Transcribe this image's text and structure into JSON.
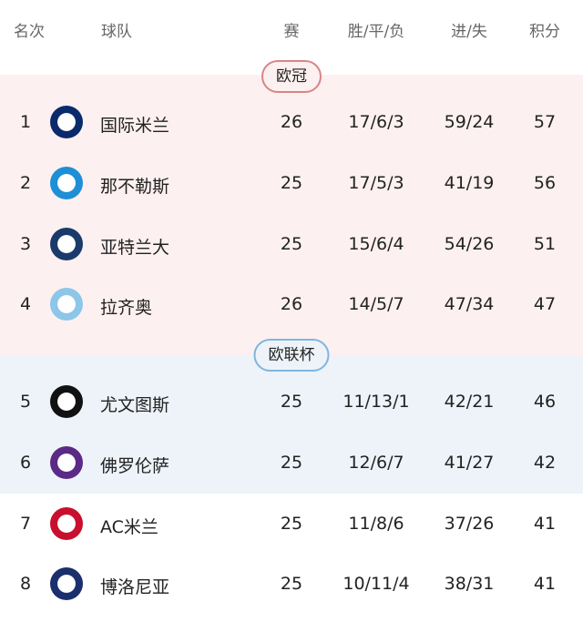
{
  "header": {
    "rank": "名次",
    "team": "球队",
    "played": "赛",
    "wdl": "胜/平/负",
    "goals": "进/失",
    "points": "积分"
  },
  "zones": [
    {
      "label": "欧冠",
      "background": "#fdf0f0",
      "border": "#d98585"
    },
    {
      "label": "欧联杯",
      "background": "#edf3f9",
      "border": "#7fb6de"
    }
  ],
  "rows": [
    {
      "rank": "1",
      "team": "国际米兰",
      "played": "26",
      "wdl": "17/6/3",
      "goals": "59/24",
      "points": "57",
      "logo": "inter-logo",
      "color": "#0a2a6b"
    },
    {
      "rank": "2",
      "team": "那不勒斯",
      "played": "25",
      "wdl": "17/5/3",
      "goals": "41/19",
      "points": "56",
      "logo": "napoli-logo",
      "color": "#1e8fd6"
    },
    {
      "rank": "3",
      "team": "亚特兰大",
      "played": "25",
      "wdl": "15/6/4",
      "goals": "54/26",
      "points": "51",
      "logo": "atalanta-logo",
      "color": "#1a3a6b"
    },
    {
      "rank": "4",
      "team": "拉齐奥",
      "played": "26",
      "wdl": "14/5/7",
      "goals": "47/34",
      "points": "47",
      "logo": "lazio-logo",
      "color": "#8cc6e8"
    },
    {
      "rank": "5",
      "team": "尤文图斯",
      "played": "25",
      "wdl": "11/13/1",
      "goals": "42/21",
      "points": "46",
      "logo": "juventus-logo",
      "color": "#111111"
    },
    {
      "rank": "6",
      "team": "佛罗伦萨",
      "played": "25",
      "wdl": "12/6/7",
      "goals": "41/27",
      "points": "42",
      "logo": "fiorentina-logo",
      "color": "#5b2a86"
    },
    {
      "rank": "7",
      "team": "AC米兰",
      "played": "25",
      "wdl": "11/8/6",
      "goals": "37/26",
      "points": "41",
      "logo": "milan-logo",
      "color": "#c8102e"
    },
    {
      "rank": "8",
      "team": "博洛尼亚",
      "played": "25",
      "wdl": "10/11/4",
      "goals": "38/31",
      "points": "41",
      "logo": "bologna-logo",
      "color": "#1a2f6b"
    }
  ]
}
